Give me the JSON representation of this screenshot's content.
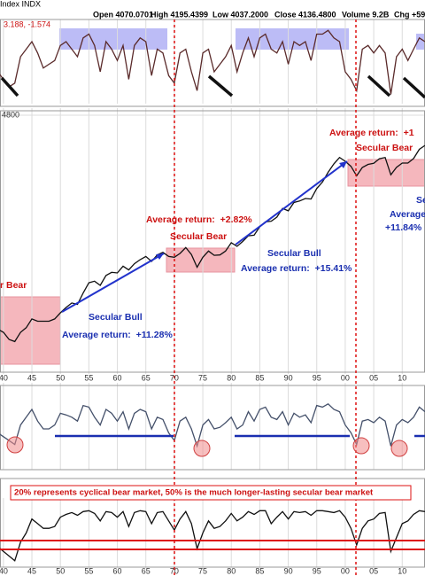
{
  "header": {
    "symbol": "Index INDX",
    "open": "Open 4070.0701",
    "high": "High 4195.4399",
    "low": "Low 4037.2000",
    "close": "Close 4136.4800",
    "volume": "Volume 9.2B",
    "chg": "Chg +59."
  },
  "chart_data": [
    {
      "type": "line",
      "annotation": "3.188, -1.574",
      "color": "#5a2a2a",
      "ylim": [
        -10,
        10
      ],
      "x": [
        1939,
        1940,
        1941,
        1942,
        1943,
        1944,
        1945,
        1946,
        1947,
        1948,
        1949,
        1950,
        1951,
        1952,
        1953,
        1954,
        1955,
        1956,
        1957,
        1958,
        1959,
        1960,
        1961,
        1962,
        1963,
        1964,
        1965,
        1966,
        1967,
        1968,
        1969,
        1970,
        1971,
        1972,
        1973,
        1974,
        1975,
        1976,
        1977,
        1978,
        1979,
        1980,
        1981,
        1982,
        1983,
        1984,
        1985,
        1986,
        1987,
        1988,
        1989,
        1990,
        1991,
        1992,
        1993,
        1994,
        1995,
        1996,
        1997,
        1998,
        1999,
        2000,
        2001,
        2002,
        2003,
        2004,
        2005,
        2006,
        2007,
        2008,
        2009,
        2010,
        2011,
        2012,
        2013,
        2014
      ],
      "values": [
        -2,
        -4,
        -6,
        -5,
        2,
        4,
        6,
        3,
        -1,
        0,
        1,
        5,
        6,
        4,
        2,
        7,
        8,
        5,
        -2,
        6,
        4,
        1,
        5,
        -4,
        5,
        7,
        6,
        -3,
        4,
        3,
        -3,
        -5,
        3,
        4,
        -2,
        -7,
        3,
        4,
        -2,
        0,
        2,
        5,
        -2,
        3,
        7,
        2,
        7,
        8,
        4,
        3,
        6,
        0,
        6,
        5,
        6,
        1,
        8,
        8,
        9,
        7,
        6,
        -2,
        -4,
        -7,
        4,
        5,
        3,
        5,
        3,
        -8,
        2,
        4,
        1,
        4,
        7,
        6
      ]
    },
    {
      "type": "line",
      "log": true,
      "color": "#111111",
      "ylim": [
        3.6,
        4800
      ],
      "yticks": [
        4800
      ],
      "xlim": [
        1939.4,
        2014
      ],
      "xticks": [
        {
          "value": 1940,
          "label": "40"
        },
        {
          "value": 1945,
          "label": "45"
        },
        {
          "value": 1950,
          "label": "50"
        },
        {
          "value": 1955,
          "label": "55"
        },
        {
          "value": 1960,
          "label": "60"
        },
        {
          "value": 1965,
          "label": "65"
        },
        {
          "value": 1970,
          "label": "70"
        },
        {
          "value": 1975,
          "label": "75"
        },
        {
          "value": 1980,
          "label": "80"
        },
        {
          "value": 1985,
          "label": "85"
        },
        {
          "value": 1990,
          "label": "90"
        },
        {
          "value": 1995,
          "label": "95"
        },
        {
          "value": 2000,
          "label": "00"
        },
        {
          "value": 2005,
          "label": "05"
        },
        {
          "value": 2010,
          "label": "10"
        }
      ],
      "x": [
        1939,
        1940,
        1941,
        1942,
        1943,
        1944,
        1945,
        1946,
        1947,
        1948,
        1949,
        1950,
        1951,
        1952,
        1953,
        1954,
        1955,
        1956,
        1957,
        1958,
        1959,
        1960,
        1961,
        1962,
        1963,
        1964,
        1965,
        1966,
        1967,
        1968,
        1969,
        1970,
        1971,
        1972,
        1973,
        1974,
        1975,
        1976,
        1977,
        1978,
        1979,
        1980,
        1981,
        1982,
        1983,
        1984,
        1985,
        1986,
        1987,
        1988,
        1989,
        1990,
        1991,
        1992,
        1993,
        1994,
        1995,
        1996,
        1997,
        1998,
        1999,
        2000,
        2001,
        2002,
        2003,
        2004,
        2005,
        2006,
        2007,
        2008,
        2009,
        2010,
        2011,
        2012,
        2013,
        2014
      ],
      "values": [
        12,
        11,
        9,
        8.5,
        11,
        12.5,
        16,
        15,
        15,
        15,
        16,
        19,
        22,
        25,
        24,
        33,
        44,
        46,
        41,
        54,
        59,
        58,
        70,
        63,
        75,
        84,
        92,
        80,
        96,
        103,
        92,
        90,
        100,
        118,
        97,
        68,
        90,
        107,
        95,
        96,
        107,
        135,
        122,
        140,
        164,
        167,
        211,
        242,
        247,
        277,
        353,
        330,
        417,
        435,
        466,
        459,
        615,
        740,
        970,
        1229,
        1469,
        1320,
        1148,
        880,
        1111,
        1211,
        1248,
        1418,
        1468,
        903,
        1115,
        1257,
        1257,
        1426,
        1848,
        2058
      ],
      "annotations": [
        {
          "text": "r Bear",
          "color": "#cc1111"
        },
        {
          "text": "Secular Bull",
          "color": "#1a2fb0"
        },
        {
          "text": "Average return:  +11.28%",
          "color": "#1a2fb0"
        },
        {
          "text": "Average return:  +2.82%",
          "color": "#cc1111"
        },
        {
          "text": "Secular Bear",
          "color": "#cc1111"
        },
        {
          "text": "Secular Bull",
          "color": "#1a2fb0"
        },
        {
          "text": "Average return:  +15.41%",
          "color": "#1a2fb0"
        },
        {
          "text": "Average return:  +1",
          "color": "#cc1111"
        },
        {
          "text": "Secular Bear",
          "color": "#cc1111"
        },
        {
          "text": "Se",
          "color": "#1a2fb0"
        },
        {
          "text": "Average",
          "color": "#1a2fb0"
        },
        {
          "text": "+11.84%",
          "color": "#1a2fb0"
        }
      ]
    },
    {
      "type": "line",
      "color": "#44506a",
      "ylim": [
        0,
        100
      ],
      "x": [
        1939,
        1940,
        1941,
        1942,
        1943,
        1944,
        1945,
        1946,
        1947,
        1948,
        1949,
        1950,
        1951,
        1952,
        1953,
        1954,
        1955,
        1956,
        1957,
        1958,
        1959,
        1960,
        1961,
        1962,
        1963,
        1964,
        1965,
        1966,
        1967,
        1968,
        1969,
        1970,
        1971,
        1972,
        1973,
        1974,
        1975,
        1976,
        1977,
        1978,
        1979,
        1980,
        1981,
        1982,
        1983,
        1984,
        1985,
        1986,
        1987,
        1988,
        1989,
        1990,
        1991,
        1992,
        1993,
        1994,
        1995,
        1996,
        1997,
        1998,
        1999,
        2000,
        2001,
        2002,
        2003,
        2004,
        2005,
        2006,
        2007,
        2008,
        2009,
        2010,
        2011,
        2012,
        2013,
        2014
      ],
      "values": [
        45,
        40,
        35,
        30,
        55,
        65,
        75,
        60,
        50,
        50,
        55,
        70,
        68,
        65,
        60,
        80,
        78,
        65,
        55,
        75,
        70,
        60,
        72,
        50,
        70,
        75,
        72,
        50,
        65,
        62,
        45,
        35,
        60,
        65,
        50,
        28,
        55,
        62,
        50,
        52,
        58,
        65,
        50,
        55,
        72,
        60,
        75,
        78,
        65,
        62,
        72,
        55,
        70,
        65,
        68,
        58,
        80,
        78,
        82,
        75,
        72,
        55,
        45,
        30,
        60,
        62,
        58,
        65,
        60,
        28,
        55,
        62,
        58,
        65,
        78,
        72
      ]
    },
    {
      "type": "line",
      "color": "#111111",
      "ylim": [
        -60,
        5
      ],
      "note": "20% represents cyclical bear market, 50% is the much longer-lasting secular bear market",
      "xticks": [
        {
          "value": 1940,
          "label": "40"
        },
        {
          "value": 1945,
          "label": "45"
        },
        {
          "value": 1950,
          "label": "50"
        },
        {
          "value": 1955,
          "label": "55"
        },
        {
          "value": 1960,
          "label": "60"
        },
        {
          "value": 1965,
          "label": "65"
        },
        {
          "value": 1970,
          "label": "70"
        },
        {
          "value": 1975,
          "label": "75"
        },
        {
          "value": 1980,
          "label": "80"
        },
        {
          "value": 1985,
          "label": "85"
        },
        {
          "value": 1990,
          "label": "90"
        },
        {
          "value": 1995,
          "label": "95"
        },
        {
          "value": 2000,
          "label": "00"
        },
        {
          "value": 2005,
          "label": "05"
        },
        {
          "value": 2010,
          "label": "10"
        }
      ],
      "x": [
        1939,
        1940,
        1941,
        1942,
        1943,
        1944,
        1945,
        1946,
        1947,
        1948,
        1949,
        1950,
        1951,
        1952,
        1953,
        1954,
        1955,
        1956,
        1957,
        1958,
        1959,
        1960,
        1961,
        1962,
        1963,
        1964,
        1965,
        1966,
        1967,
        1968,
        1969,
        1970,
        1971,
        1972,
        1973,
        1974,
        1975,
        1976,
        1977,
        1978,
        1979,
        1980,
        1981,
        1982,
        1983,
        1984,
        1985,
        1986,
        1987,
        1988,
        1989,
        1990,
        1991,
        1992,
        1993,
        1994,
        1995,
        1996,
        1997,
        1998,
        1999,
        2000,
        2001,
        2002,
        2003,
        2004,
        2005,
        2006,
        2007,
        2008,
        2009,
        2010,
        2011,
        2012,
        2013,
        2014
      ],
      "values": [
        -40,
        -45,
        -50,
        -55,
        -35,
        -25,
        -10,
        -15,
        -20,
        -20,
        -18,
        -8,
        -5,
        -3,
        -6,
        -2,
        -1,
        -4,
        -12,
        -2,
        -3,
        -8,
        -2,
        -18,
        -3,
        -1,
        -2,
        -15,
        -3,
        -2,
        -12,
        -22,
        -10,
        -2,
        -15,
        -42,
        -25,
        -12,
        -20,
        -18,
        -12,
        -4,
        -12,
        -8,
        -2,
        -5,
        -1,
        -1,
        -15,
        -8,
        -2,
        -10,
        -2,
        -3,
        -2,
        -6,
        -1,
        -1,
        -2,
        -3,
        -1,
        -8,
        -20,
        -38,
        -20,
        -12,
        -10,
        -4,
        -3,
        -45,
        -30,
        -15,
        -12,
        -5,
        -1,
        -2
      ]
    }
  ]
}
